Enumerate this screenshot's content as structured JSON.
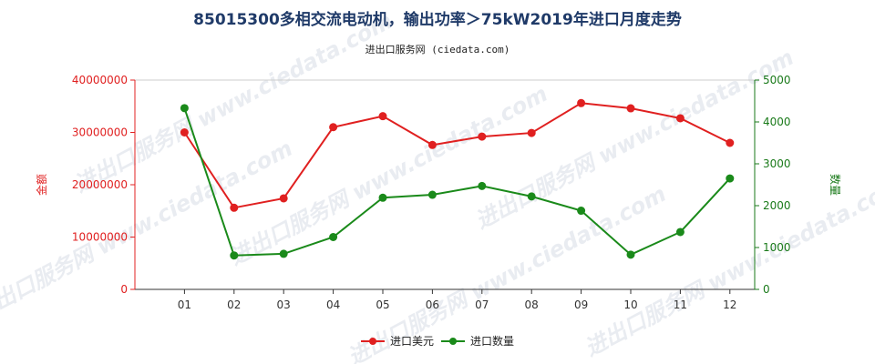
{
  "chart_data": {
    "type": "line",
    "title": "85015300多相交流电动机，输出功率＞75kW2019年进口月度走势",
    "subtitle": "进出口服务网 (ciedata.com)",
    "watermark": "进出口服务网 www.ciedata.com",
    "categories": [
      "01",
      "02",
      "03",
      "04",
      "05",
      "06",
      "07",
      "08",
      "09",
      "10",
      "11",
      "12"
    ],
    "y_left": {
      "label": "金额",
      "ticks": [
        "0",
        "10000000",
        "20000000",
        "30000000",
        "40000000"
      ],
      "ylim": [
        0,
        40000000
      ],
      "color": "#e02020"
    },
    "y_right": {
      "label": "数量",
      "ticks": [
        "0",
        "1000",
        "2000",
        "3000",
        "4000",
        "5000"
      ],
      "ylim": [
        0,
        5000
      ],
      "color": "#1a7a1a"
    },
    "series": [
      {
        "name": "进口美元",
        "axis": "left",
        "color": "#e02020",
        "values": [
          30000000,
          15600000,
          17400000,
          31000000,
          33100000,
          27600000,
          29200000,
          29900000,
          35600000,
          34600000,
          32700000,
          28000000
        ]
      },
      {
        "name": "进口数量",
        "axis": "right",
        "color": "#1a8a1a",
        "values": [
          4330,
          810,
          850,
          1250,
          2190,
          2260,
          2470,
          2220,
          1880,
          830,
          1370,
          2650
        ]
      }
    ],
    "legend_position": "bottom-center",
    "grid": false
  }
}
